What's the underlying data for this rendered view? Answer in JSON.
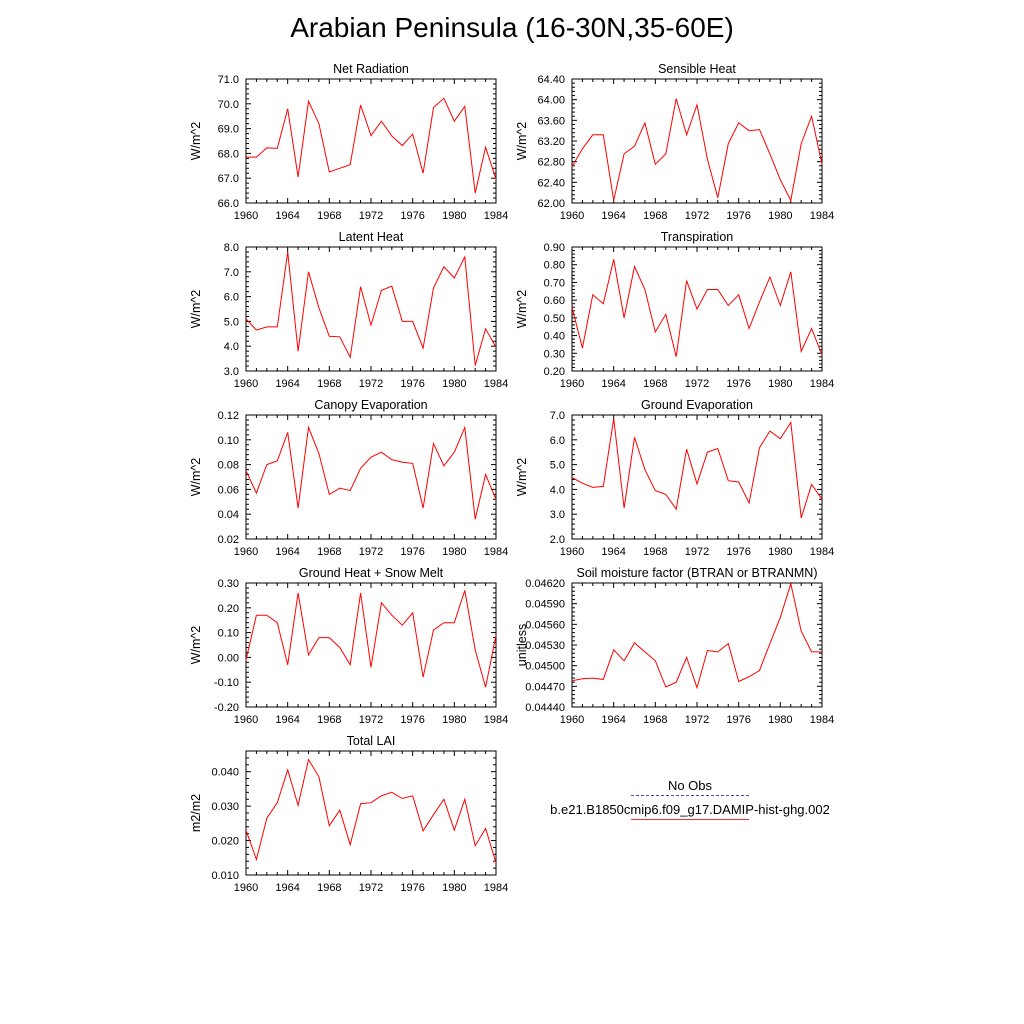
{
  "figure": {
    "title": "Arabian Peninsula (16-30N,35-60E)"
  },
  "legend": {
    "entries": [
      {
        "name": "No Obs",
        "color": "#4a4ad0",
        "style": "dashed"
      },
      {
        "name": "b.e21.B1850cmip6.f09_g17.DAMIP-hist-ghg.002",
        "color": "#ff0000",
        "style": "solid"
      }
    ]
  },
  "chart_data": [
    {
      "type": "line",
      "title": "Net Radiation",
      "xlabel": "",
      "ylabel": "W/m^2",
      "xlim": [
        1960,
        1984
      ],
      "ylim": [
        66.0,
        71.0
      ],
      "xticks": [
        1960,
        1964,
        1968,
        1972,
        1976,
        1980,
        1984
      ],
      "yticks": [
        "66.0",
        "67.0",
        "68.0",
        "69.0",
        "70.0",
        "71.0"
      ],
      "x": [
        1960,
        1961,
        1962,
        1963,
        1964,
        1965,
        1966,
        1967,
        1968,
        1969,
        1970,
        1971,
        1972,
        1973,
        1974,
        1975,
        1976,
        1977,
        1978,
        1979,
        1980,
        1981,
        1982,
        1983,
        1984
      ],
      "series": [
        {
          "color": "#ff0000",
          "values": [
            67.85,
            67.85,
            68.22,
            68.2,
            69.8,
            67.05,
            70.1,
            69.2,
            67.25,
            67.4,
            67.55,
            69.95,
            68.72,
            69.3,
            68.7,
            68.32,
            68.78,
            67.2,
            69.85,
            70.22,
            69.3,
            69.9,
            66.4,
            68.25,
            66.95
          ]
        }
      ]
    },
    {
      "type": "line",
      "title": "Sensible Heat",
      "xlabel": "",
      "ylabel": "W/m^2",
      "xlim": [
        1960,
        1984
      ],
      "ylim": [
        62.0,
        64.4
      ],
      "xticks": [
        1960,
        1964,
        1968,
        1972,
        1976,
        1980,
        1984
      ],
      "yticks": [
        "62.00",
        "62.40",
        "62.80",
        "63.20",
        "63.60",
        "64.00",
        "64.40"
      ],
      "x": [
        1960,
        1961,
        1962,
        1963,
        1964,
        1965,
        1966,
        1967,
        1968,
        1969,
        1970,
        1971,
        1972,
        1973,
        1974,
        1975,
        1976,
        1977,
        1978,
        1979,
        1980,
        1981,
        1982,
        1983,
        1984
      ],
      "series": [
        {
          "color": "#ff0000",
          "values": [
            62.7,
            63.05,
            63.32,
            63.32,
            62.05,
            62.95,
            63.1,
            63.55,
            62.75,
            62.95,
            64.02,
            63.32,
            63.9,
            62.85,
            62.1,
            63.15,
            63.55,
            63.4,
            63.42,
            62.95,
            62.45,
            62.05,
            63.15,
            63.68,
            62.75
          ]
        }
      ]
    },
    {
      "type": "line",
      "title": "Latent Heat",
      "xlabel": "",
      "ylabel": "W/m^2",
      "xlim": [
        1960,
        1984
      ],
      "ylim": [
        3.0,
        8.0
      ],
      "xticks": [
        1960,
        1964,
        1968,
        1972,
        1976,
        1980,
        1984
      ],
      "yticks": [
        "3.0",
        "4.0",
        "5.0",
        "6.0",
        "7.0",
        "8.0"
      ],
      "x": [
        1960,
        1961,
        1962,
        1963,
        1964,
        1965,
        1966,
        1967,
        1968,
        1969,
        1970,
        1971,
        1972,
        1973,
        1974,
        1975,
        1976,
        1977,
        1978,
        1979,
        1980,
        1981,
        1982,
        1983,
        1984
      ],
      "series": [
        {
          "color": "#ff0000",
          "values": [
            5.1,
            4.65,
            4.78,
            4.78,
            7.8,
            3.8,
            7.0,
            5.55,
            4.4,
            4.38,
            3.55,
            6.4,
            4.85,
            6.25,
            6.42,
            5.0,
            5.0,
            3.92,
            6.35,
            7.2,
            6.75,
            7.6,
            3.22,
            4.7,
            3.95
          ]
        }
      ]
    },
    {
      "type": "line",
      "title": "Transpiration",
      "xlabel": "",
      "ylabel": "W/m^2",
      "xlim": [
        1960,
        1984
      ],
      "ylim": [
        0.2,
        0.9
      ],
      "xticks": [
        1960,
        1964,
        1968,
        1972,
        1976,
        1980,
        1984
      ],
      "yticks": [
        "0.20",
        "0.30",
        "0.40",
        "0.50",
        "0.60",
        "0.70",
        "0.80",
        "0.90"
      ],
      "x": [
        1960,
        1961,
        1962,
        1963,
        1964,
        1965,
        1966,
        1967,
        1968,
        1969,
        1970,
        1971,
        1972,
        1973,
        1974,
        1975,
        1976,
        1977,
        1978,
        1979,
        1980,
        1981,
        1982,
        1983,
        1984
      ],
      "series": [
        {
          "color": "#ff0000",
          "values": [
            0.56,
            0.33,
            0.63,
            0.58,
            0.83,
            0.5,
            0.79,
            0.66,
            0.42,
            0.52,
            0.28,
            0.71,
            0.55,
            0.66,
            0.66,
            0.57,
            0.63,
            0.44,
            0.59,
            0.73,
            0.57,
            0.76,
            0.31,
            0.44,
            0.29
          ]
        }
      ]
    },
    {
      "type": "line",
      "title": "Canopy Evaporation",
      "xlabel": "",
      "ylabel": "W/m^2",
      "xlim": [
        1960,
        1984
      ],
      "ylim": [
        0.02,
        0.12
      ],
      "xticks": [
        1960,
        1964,
        1968,
        1972,
        1976,
        1980,
        1984
      ],
      "yticks": [
        "0.02",
        "0.04",
        "0.06",
        "0.08",
        "0.10",
        "0.12"
      ],
      "x": [
        1960,
        1961,
        1962,
        1963,
        1964,
        1965,
        1966,
        1967,
        1968,
        1969,
        1970,
        1971,
        1972,
        1973,
        1974,
        1975,
        1976,
        1977,
        1978,
        1979,
        1980,
        1981,
        1982,
        1983,
        1984
      ],
      "series": [
        {
          "color": "#ff0000",
          "values": [
            0.075,
            0.057,
            0.08,
            0.083,
            0.106,
            0.045,
            0.11,
            0.089,
            0.056,
            0.061,
            0.059,
            0.077,
            0.086,
            0.09,
            0.084,
            0.082,
            0.081,
            0.045,
            0.097,
            0.079,
            0.09,
            0.11,
            0.036,
            0.072,
            0.052
          ]
        }
      ]
    },
    {
      "type": "line",
      "title": "Ground Evaporation",
      "xlabel": "",
      "ylabel": "W/m^2",
      "xlim": [
        1960,
        1984
      ],
      "ylim": [
        2.0,
        7.0
      ],
      "xticks": [
        1960,
        1964,
        1968,
        1972,
        1976,
        1980,
        1984
      ],
      "yticks": [
        "2.0",
        "3.0",
        "4.0",
        "5.0",
        "6.0",
        "7.0"
      ],
      "x": [
        1960,
        1961,
        1962,
        1963,
        1964,
        1965,
        1966,
        1967,
        1968,
        1969,
        1970,
        1971,
        1972,
        1973,
        1974,
        1975,
        1976,
        1977,
        1978,
        1979,
        1980,
        1981,
        1982,
        1983,
        1984
      ],
      "series": [
        {
          "color": "#ff0000",
          "values": [
            4.48,
            4.25,
            4.08,
            4.12,
            6.85,
            3.25,
            6.1,
            4.8,
            3.95,
            3.8,
            3.2,
            5.62,
            4.22,
            5.5,
            5.65,
            4.35,
            4.3,
            3.45,
            5.68,
            6.35,
            6.05,
            6.7,
            2.85,
            4.2,
            3.6
          ]
        }
      ]
    },
    {
      "type": "line",
      "title": "Ground Heat + Snow Melt",
      "xlabel": "",
      "ylabel": "W/m^2",
      "xlim": [
        1960,
        1984
      ],
      "ylim": [
        -0.2,
        0.3
      ],
      "xticks": [
        1960,
        1964,
        1968,
        1972,
        1976,
        1980,
        1984
      ],
      "yticks": [
        "-0.20",
        "-0.10",
        "0.00",
        "0.10",
        "0.20",
        "0.30"
      ],
      "x": [
        1960,
        1961,
        1962,
        1963,
        1964,
        1965,
        1966,
        1967,
        1968,
        1969,
        1970,
        1971,
        1972,
        1973,
        1974,
        1975,
        1976,
        1977,
        1978,
        1979,
        1980,
        1981,
        1982,
        1983,
        1984
      ],
      "series": [
        {
          "color": "#ff0000",
          "values": [
            -0.01,
            0.17,
            0.17,
            0.14,
            -0.03,
            0.26,
            0.01,
            0.08,
            0.08,
            0.04,
            -0.03,
            0.26,
            -0.04,
            0.22,
            0.17,
            0.13,
            0.18,
            -0.08,
            0.11,
            0.14,
            0.14,
            0.27,
            0.03,
            -0.12,
            0.09
          ]
        }
      ]
    },
    {
      "type": "line",
      "title": "Soil moisture factor (BTRAN or BTRANMN)",
      "xlabel": "",
      "ylabel": "unitless",
      "xlim": [
        1960,
        1984
      ],
      "ylim": [
        0.0444,
        0.0462
      ],
      "xticks": [
        1960,
        1964,
        1968,
        1972,
        1976,
        1980,
        1984
      ],
      "yticks": [
        "0.04440",
        "0.04470",
        "0.04500",
        "0.04530",
        "0.04560",
        "0.04590",
        "0.04620"
      ],
      "x": [
        1960,
        1961,
        1962,
        1963,
        1964,
        1965,
        1966,
        1967,
        1968,
        1969,
        1970,
        1971,
        1972,
        1973,
        1974,
        1975,
        1976,
        1977,
        1978,
        1979,
        1980,
        1981,
        1982,
        1983,
        1984
      ],
      "series": [
        {
          "color": "#ff0000",
          "values": [
            0.04478,
            0.04481,
            0.04482,
            0.0448,
            0.04523,
            0.04507,
            0.04533,
            0.0452,
            0.04507,
            0.04469,
            0.04476,
            0.04512,
            0.04468,
            0.04522,
            0.0452,
            0.04532,
            0.04477,
            0.04484,
            0.04493,
            0.04532,
            0.0457,
            0.04619,
            0.0455,
            0.0452,
            0.0452
          ]
        }
      ]
    },
    {
      "type": "line",
      "title": "Total LAI",
      "xlabel": "",
      "ylabel": "m2/m2",
      "xlim": [
        1960,
        1984
      ],
      "ylim": [
        0.01,
        0.046
      ],
      "xticks": [
        1960,
        1964,
        1968,
        1972,
        1976,
        1980,
        1984
      ],
      "yticks": [
        "0.010",
        "0.020",
        "0.030",
        "0.040"
      ],
      "x": [
        1960,
        1961,
        1962,
        1963,
        1964,
        1965,
        1966,
        1967,
        1968,
        1969,
        1970,
        1971,
        1972,
        1973,
        1974,
        1975,
        1976,
        1977,
        1978,
        1979,
        1980,
        1981,
        1982,
        1983,
        1984
      ],
      "series": [
        {
          "color": "#ff0000",
          "values": [
            0.023,
            0.0145,
            0.0265,
            0.031,
            0.0405,
            0.0302,
            0.0435,
            0.0385,
            0.0243,
            0.0288,
            0.0188,
            0.0307,
            0.031,
            0.033,
            0.034,
            0.0322,
            0.033,
            0.0228,
            0.0275,
            0.032,
            0.023,
            0.032,
            0.0185,
            0.0235,
            0.0135
          ]
        }
      ]
    }
  ]
}
